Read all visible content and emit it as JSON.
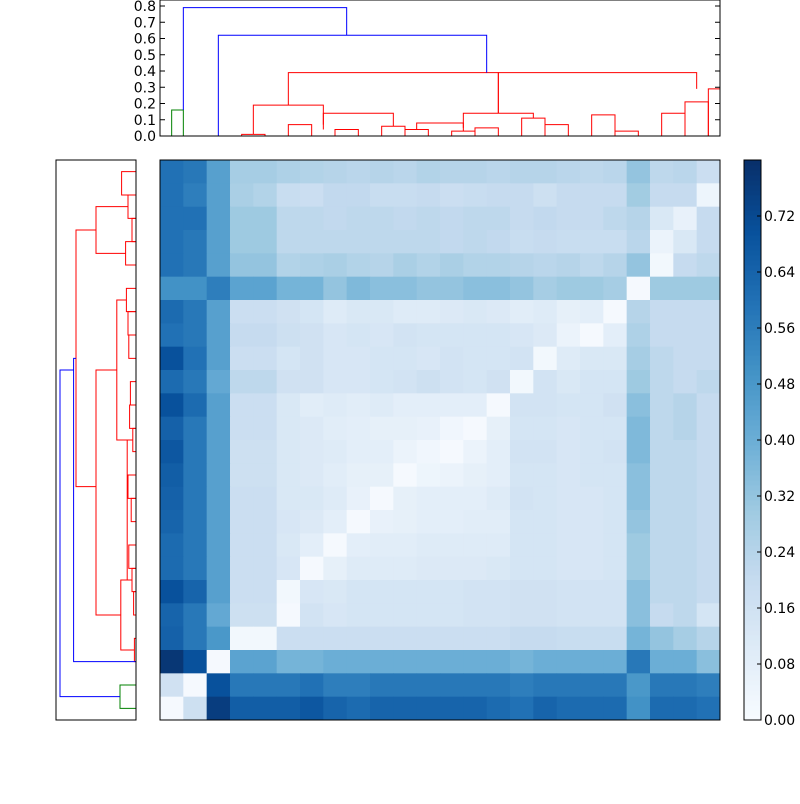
{
  "chart_data": [
    {
      "type": "dendrogram",
      "orientation": "top",
      "yticks": [
        "0.0",
        "0.1",
        "0.2",
        "0.3",
        "0.4",
        "0.5",
        "0.6",
        "0.7",
        "0.8"
      ],
      "ylim": [
        0,
        0.8
      ],
      "leaf_count": 24,
      "colors": {
        "upper": "#0000ff",
        "cluster_a": "#ff0000",
        "cluster_b": "#008000"
      },
      "links": [
        {
          "x1": 0.5,
          "h1": 0,
          "x2": 1.0,
          "h2": 0,
          "h": 0.16,
          "c": "cluster_b"
        },
        {
          "x1": 3.5,
          "h1": 0,
          "x2": 4.5,
          "h2": 0,
          "h": 0.01,
          "c": "cluster_a"
        },
        {
          "x1": 5.5,
          "h1": 0,
          "x2": 6.5,
          "h2": 0,
          "h": 0.07,
          "c": "cluster_a"
        },
        {
          "x1": 7.5,
          "h1": 0,
          "x2": 8.5,
          "h2": 0,
          "h": 0.04,
          "c": "cluster_a"
        },
        {
          "x1": 9.5,
          "h1": 0,
          "x2": 10.5,
          "h2": 0,
          "h": 0.06,
          "c": "cluster_a"
        },
        {
          "x1": 10.5,
          "h1": 0,
          "x2": 11.5,
          "h2": 0,
          "h": 0.04,
          "c": "cluster_a"
        },
        {
          "x1": 12.5,
          "h1": 0,
          "x2": 13.5,
          "h2": 0,
          "h": 0.03,
          "c": "cluster_a"
        },
        {
          "x1": 13.5,
          "h1": 0,
          "x2": 14.5,
          "h2": 0,
          "h": 0.05,
          "c": "cluster_a"
        },
        {
          "x1": 15.5,
          "h1": 0,
          "x2": 16.5,
          "h2": 0,
          "h": 0.11,
          "c": "cluster_a"
        },
        {
          "x1": 16.5,
          "h1": 0,
          "x2": 17.5,
          "h2": 0,
          "h": 0.07,
          "c": "cluster_a"
        },
        {
          "x1": 18.5,
          "h1": 0,
          "x2": 19.5,
          "h2": 0,
          "h": 0.13,
          "c": "cluster_a"
        },
        {
          "x1": 19.5,
          "h1": 0,
          "x2": 20.5,
          "h2": 0,
          "h": 0.03,
          "c": "cluster_a"
        },
        {
          "x1": 21.5,
          "h1": 0,
          "x2": 22.5,
          "h2": 0,
          "h": 0.14,
          "c": "cluster_a"
        },
        {
          "x1": 22.5,
          "h1": 0,
          "x2": 23.5,
          "h2": 0,
          "h": 0.21,
          "c": "cluster_a"
        },
        {
          "x1": 23.5,
          "h1": 0,
          "x2": 24.0,
          "h2": 0,
          "h": 0.29,
          "c": "cluster_a"
        },
        {
          "x1": 4.0,
          "h1": 0.01,
          "x2": 7.0,
          "h2": 0.07,
          "h": 0.19,
          "c": "cluster_a"
        },
        {
          "x1": 7.0,
          "h1": 0.04,
          "x2": 10.0,
          "h2": 0.06,
          "h": 0.14,
          "c": "cluster_a"
        },
        {
          "x1": 11.0,
          "h1": 0.04,
          "x2": 13.0,
          "h2": 0.03,
          "h": 0.08,
          "c": "cluster_a"
        },
        {
          "x1": 13.0,
          "h1": 0.05,
          "x2": 16.0,
          "h2": 0.11,
          "h": 0.14,
          "c": "cluster_a"
        },
        {
          "x1": 5.5,
          "h1": 0.19,
          "x2": 14.5,
          "h2": 0.14,
          "h": 0.39,
          "c": "cluster_a"
        },
        {
          "x1": 14.5,
          "h1": 0.14,
          "x2": 23.0,
          "h2": 0.29,
          "h": 0.39,
          "c": "cluster_a"
        },
        {
          "x1": 2.5,
          "h1": 0,
          "x2": 14.0,
          "h2": 0.39,
          "h": 0.62,
          "c": "upper"
        },
        {
          "x1": 1.0,
          "h1": 0.16,
          "x2": 8.0,
          "h2": 0.62,
          "h": 0.79,
          "c": "upper"
        }
      ]
    },
    {
      "type": "dendrogram",
      "orientation": "left",
      "leaf_count": 24,
      "colors": {
        "upper": "#0000ff",
        "cluster_a": "#ff0000",
        "cluster_b": "#008000"
      },
      "links": [
        {
          "y1": 22.5,
          "d1": 0,
          "y2": 23.5,
          "d2": 0,
          "d": 0.2,
          "c": "cluster_b"
        },
        {
          "y1": 0.5,
          "d1": 0,
          "y2": 1.5,
          "d2": 0,
          "d": 0.18,
          "c": "cluster_a"
        },
        {
          "y1": 1.5,
          "d1": 0,
          "y2": 2.5,
          "d2": 0,
          "d": 0.1,
          "c": "cluster_a"
        },
        {
          "y1": 2.5,
          "d1": 0,
          "y2": 3.5,
          "d2": 0,
          "d": 0.05,
          "c": "cluster_a"
        },
        {
          "y1": 3.5,
          "d1": 0,
          "y2": 4.5,
          "d2": 0,
          "d": 0.13,
          "c": "cluster_a"
        },
        {
          "y1": 5.5,
          "d1": 0,
          "y2": 6.5,
          "d2": 0,
          "d": 0.12,
          "c": "cluster_a"
        },
        {
          "y1": 6.5,
          "d1": 0,
          "y2": 7.5,
          "d2": 0,
          "d": 0.1,
          "c": "cluster_a"
        },
        {
          "y1": 7.5,
          "d1": 0,
          "y2": 8.5,
          "d2": 0,
          "d": 0.09,
          "c": "cluster_a"
        },
        {
          "y1": 9.5,
          "d1": 0,
          "y2": 10.5,
          "d2": 0,
          "d": 0.07,
          "c": "cluster_a"
        },
        {
          "y1": 10.5,
          "d1": 0,
          "y2": 11.5,
          "d2": 0,
          "d": 0.08,
          "c": "cluster_a"
        },
        {
          "y1": 11.5,
          "d1": 0,
          "y2": 12.5,
          "d2": 0,
          "d": 0.04,
          "c": "cluster_a"
        },
        {
          "y1": 13.5,
          "d1": 0,
          "y2": 14.5,
          "d2": 0,
          "d": 0.1,
          "c": "cluster_a"
        },
        {
          "y1": 14.5,
          "d1": 0,
          "y2": 15.5,
          "d2": 0,
          "d": 0.06,
          "c": "cluster_a"
        },
        {
          "y1": 16.5,
          "d1": 0,
          "y2": 17.5,
          "d2": 0,
          "d": 0.09,
          "c": "cluster_a"
        },
        {
          "y1": 17.5,
          "d1": 0,
          "y2": 18.5,
          "d2": 0,
          "d": 0.05,
          "c": "cluster_a"
        },
        {
          "y1": 18.5,
          "d1": 0,
          "y2": 19.5,
          "d2": 0,
          "d": 0.03,
          "c": "cluster_a"
        },
        {
          "y1": 20.5,
          "d1": 0,
          "y2": 21.5,
          "d2": 0,
          "d": 0.02,
          "c": "cluster_a"
        },
        {
          "y1": 2.0,
          "d1": 0.1,
          "y2": 4.0,
          "d2": 0.13,
          "d": 0.5,
          "c": "cluster_a"
        },
        {
          "y1": 6.0,
          "d1": 0.12,
          "y2": 12.0,
          "d2": 0.08,
          "d": 0.24,
          "c": "cluster_a"
        },
        {
          "y1": 12.0,
          "d1": 0.04,
          "y2": 18.0,
          "d2": 0.05,
          "d": 0.11,
          "c": "cluster_a"
        },
        {
          "y1": 18.0,
          "d1": 0.09,
          "y2": 21.0,
          "d2": 0.02,
          "d": 0.19,
          "c": "cluster_a"
        },
        {
          "y1": 9.0,
          "d1": 0.24,
          "y2": 19.5,
          "d2": 0.19,
          "d": 0.5,
          "c": "cluster_a"
        },
        {
          "y1": 3.0,
          "d1": 0.5,
          "y2": 14.0,
          "d2": 0.5,
          "d": 0.75,
          "c": "cluster_a"
        },
        {
          "y1": 8.5,
          "d1": 0.75,
          "y2": 21.5,
          "d2": 0,
          "d": 0.78,
          "c": "upper"
        },
        {
          "y1": 9.0,
          "d1": 0.78,
          "y2": 23.0,
          "d2": 0.2,
          "d": 0.95,
          "c": "upper"
        }
      ]
    },
    {
      "type": "heatmap",
      "cmap": "Blues",
      "vmin": 0.0,
      "vmax": 0.8,
      "rows": 24,
      "cols": 24,
      "values": [
        [
          0.6,
          0.58,
          0.45,
          0.28,
          0.28,
          0.26,
          0.25,
          0.24,
          0.23,
          0.24,
          0.23,
          0.25,
          0.24,
          0.24,
          0.23,
          0.24,
          0.24,
          0.23,
          0.22,
          0.23,
          0.32,
          0.22,
          0.23,
          0.18
        ],
        [
          0.6,
          0.56,
          0.45,
          0.27,
          0.25,
          0.19,
          0.18,
          0.21,
          0.21,
          0.19,
          0.19,
          0.2,
          0.18,
          0.19,
          0.2,
          0.2,
          0.17,
          0.2,
          0.2,
          0.2,
          0.29,
          0.2,
          0.2,
          0.04
        ],
        [
          0.6,
          0.6,
          0.45,
          0.3,
          0.3,
          0.22,
          0.22,
          0.21,
          0.22,
          0.22,
          0.21,
          0.22,
          0.21,
          0.22,
          0.22,
          0.2,
          0.21,
          0.2,
          0.2,
          0.22,
          0.24,
          0.12,
          0.06,
          0.2
        ],
        [
          0.6,
          0.58,
          0.45,
          0.3,
          0.3,
          0.22,
          0.22,
          0.22,
          0.22,
          0.22,
          0.22,
          0.22,
          0.21,
          0.22,
          0.21,
          0.19,
          0.2,
          0.19,
          0.19,
          0.19,
          0.23,
          0.05,
          0.12,
          0.2
        ],
        [
          0.6,
          0.58,
          0.45,
          0.32,
          0.32,
          0.25,
          0.26,
          0.27,
          0.25,
          0.24,
          0.27,
          0.25,
          0.27,
          0.25,
          0.25,
          0.24,
          0.23,
          0.24,
          0.22,
          0.24,
          0.32,
          0.02,
          0.2,
          0.22
        ],
        [
          0.5,
          0.5,
          0.56,
          0.44,
          0.44,
          0.38,
          0.38,
          0.32,
          0.36,
          0.34,
          0.34,
          0.32,
          0.32,
          0.34,
          0.34,
          0.32,
          0.28,
          0.3,
          0.3,
          0.28,
          0.01,
          0.3,
          0.3,
          0.3
        ],
        [
          0.62,
          0.58,
          0.45,
          0.18,
          0.18,
          0.16,
          0.14,
          0.1,
          0.12,
          0.12,
          0.1,
          0.1,
          0.11,
          0.12,
          0.11,
          0.09,
          0.1,
          0.07,
          0.08,
          0.01,
          0.24,
          0.2,
          0.2,
          0.2
        ],
        [
          0.6,
          0.58,
          0.45,
          0.2,
          0.2,
          0.17,
          0.16,
          0.13,
          0.14,
          0.13,
          0.15,
          0.14,
          0.14,
          0.14,
          0.14,
          0.13,
          0.11,
          0.05,
          0.01,
          0.08,
          0.26,
          0.2,
          0.2,
          0.2
        ],
        [
          0.7,
          0.6,
          0.45,
          0.18,
          0.18,
          0.14,
          0.16,
          0.13,
          0.13,
          0.14,
          0.14,
          0.13,
          0.15,
          0.14,
          0.14,
          0.15,
          0.02,
          0.1,
          0.12,
          0.12,
          0.28,
          0.22,
          0.2,
          0.2
        ],
        [
          0.62,
          0.58,
          0.42,
          0.22,
          0.22,
          0.16,
          0.16,
          0.13,
          0.13,
          0.14,
          0.15,
          0.17,
          0.15,
          0.14,
          0.16,
          0.02,
          0.15,
          0.12,
          0.14,
          0.14,
          0.3,
          0.22,
          0.2,
          0.22
        ],
        [
          0.7,
          0.62,
          0.45,
          0.18,
          0.18,
          0.12,
          0.09,
          0.1,
          0.09,
          0.1,
          0.08,
          0.08,
          0.08,
          0.08,
          0.01,
          0.15,
          0.15,
          0.14,
          0.14,
          0.16,
          0.34,
          0.22,
          0.24,
          0.2
        ],
        [
          0.65,
          0.58,
          0.45,
          0.18,
          0.18,
          0.12,
          0.11,
          0.09,
          0.08,
          0.07,
          0.07,
          0.06,
          0.03,
          0.01,
          0.07,
          0.14,
          0.14,
          0.13,
          0.14,
          0.14,
          0.36,
          0.22,
          0.24,
          0.2
        ],
        [
          0.68,
          0.58,
          0.45,
          0.17,
          0.17,
          0.12,
          0.11,
          0.1,
          0.08,
          0.08,
          0.05,
          0.03,
          0.01,
          0.05,
          0.08,
          0.15,
          0.15,
          0.13,
          0.14,
          0.15,
          0.36,
          0.22,
          0.22,
          0.2
        ],
        [
          0.66,
          0.58,
          0.45,
          0.17,
          0.17,
          0.12,
          0.11,
          0.09,
          0.07,
          0.07,
          0.01,
          0.04,
          0.05,
          0.07,
          0.08,
          0.14,
          0.14,
          0.13,
          0.14,
          0.14,
          0.34,
          0.22,
          0.22,
          0.2
        ],
        [
          0.65,
          0.58,
          0.45,
          0.18,
          0.18,
          0.12,
          0.12,
          0.1,
          0.06,
          0.01,
          0.07,
          0.08,
          0.08,
          0.08,
          0.1,
          0.15,
          0.14,
          0.13,
          0.13,
          0.14,
          0.34,
          0.22,
          0.22,
          0.2
        ],
        [
          0.64,
          0.58,
          0.45,
          0.18,
          0.18,
          0.13,
          0.11,
          0.08,
          0.01,
          0.06,
          0.07,
          0.08,
          0.08,
          0.09,
          0.09,
          0.14,
          0.14,
          0.13,
          0.13,
          0.14,
          0.32,
          0.22,
          0.22,
          0.2
        ],
        [
          0.62,
          0.58,
          0.45,
          0.18,
          0.18,
          0.12,
          0.08,
          0.01,
          0.08,
          0.09,
          0.09,
          0.1,
          0.1,
          0.1,
          0.1,
          0.14,
          0.14,
          0.13,
          0.13,
          0.14,
          0.3,
          0.22,
          0.22,
          0.2
        ],
        [
          0.62,
          0.58,
          0.45,
          0.18,
          0.18,
          0.13,
          0.01,
          0.07,
          0.1,
          0.1,
          0.1,
          0.11,
          0.11,
          0.11,
          0.12,
          0.14,
          0.14,
          0.13,
          0.13,
          0.14,
          0.3,
          0.22,
          0.22,
          0.2
        ],
        [
          0.7,
          0.64,
          0.45,
          0.18,
          0.18,
          0.02,
          0.13,
          0.12,
          0.14,
          0.14,
          0.14,
          0.14,
          0.14,
          0.15,
          0.15,
          0.16,
          0.16,
          0.15,
          0.15,
          0.15,
          0.34,
          0.22,
          0.22,
          0.2
        ],
        [
          0.64,
          0.58,
          0.42,
          0.17,
          0.17,
          0.01,
          0.15,
          0.13,
          0.14,
          0.14,
          0.14,
          0.14,
          0.14,
          0.15,
          0.15,
          0.16,
          0.16,
          0.15,
          0.15,
          0.15,
          0.34,
          0.2,
          0.22,
          0.14
        ],
        [
          0.65,
          0.58,
          0.48,
          0.02,
          0.02,
          0.18,
          0.18,
          0.18,
          0.18,
          0.18,
          0.18,
          0.18,
          0.18,
          0.18,
          0.18,
          0.2,
          0.2,
          0.19,
          0.19,
          0.19,
          0.38,
          0.32,
          0.28,
          0.24
        ],
        [
          0.78,
          0.7,
          0.01,
          0.44,
          0.44,
          0.38,
          0.38,
          0.4,
          0.4,
          0.4,
          0.4,
          0.4,
          0.4,
          0.4,
          0.4,
          0.38,
          0.4,
          0.4,
          0.4,
          0.4,
          0.58,
          0.4,
          0.4,
          0.34
        ],
        [
          0.16,
          0.01,
          0.7,
          0.58,
          0.58,
          0.58,
          0.6,
          0.56,
          0.56,
          0.58,
          0.58,
          0.58,
          0.58,
          0.58,
          0.58,
          0.56,
          0.58,
          0.58,
          0.58,
          0.58,
          0.48,
          0.58,
          0.58,
          0.56
        ],
        [
          0.01,
          0.17,
          0.76,
          0.66,
          0.66,
          0.66,
          0.68,
          0.64,
          0.62,
          0.64,
          0.64,
          0.64,
          0.64,
          0.64,
          0.62,
          0.6,
          0.64,
          0.62,
          0.62,
          0.62,
          0.5,
          0.62,
          0.62,
          0.6
        ]
      ]
    },
    {
      "type": "colorbar",
      "cmap": "Blues",
      "ticks": [
        "0.00",
        "0.08",
        "0.16",
        "0.24",
        "0.32",
        "0.40",
        "0.48",
        "0.56",
        "0.64",
        "0.72"
      ],
      "range": [
        0.0,
        0.8
      ]
    }
  ]
}
